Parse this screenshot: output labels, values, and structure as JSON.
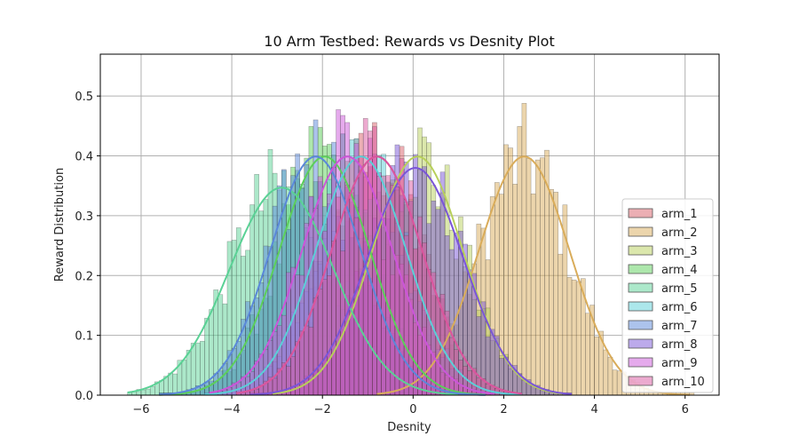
{
  "chart_data": {
    "type": "histogram",
    "title": "10 Arm Testbed: Rewards vs Desnity Plot",
    "xlabel": "Desnity",
    "ylabel": "Reward Distribution",
    "xlim": [
      -6.9,
      6.75
    ],
    "ylim": [
      0,
      0.57
    ],
    "xticks": [
      -6,
      -4,
      -2,
      0,
      2,
      4,
      6
    ],
    "yticks": [
      0.0,
      0.1,
      0.2,
      0.3,
      0.4,
      0.5
    ],
    "xtick_labels": [
      "−6",
      "−4",
      "−2",
      "0",
      "2",
      "4",
      "6"
    ],
    "ytick_labels": [
      "0.0",
      "0.1",
      "0.2",
      "0.3",
      "0.4",
      "0.5"
    ],
    "grid": true,
    "legend_position": "lower-right",
    "series": [
      {
        "name": "arm_1",
        "color": "#d9606a",
        "mean": -0.8,
        "std": 1.0,
        "range": [
          -3.9,
          2.3
        ]
      },
      {
        "name": "arm_2",
        "color": "#d9ac5a",
        "mean": 2.45,
        "std": 1.0,
        "range": [
          -0.8,
          6.1
        ]
      },
      {
        "name": "arm_3",
        "color": "#b8d05a",
        "mean": 0.1,
        "std": 1.0,
        "range": [
          -3.1,
          3.3
        ]
      },
      {
        "name": "arm_4",
        "color": "#5ccf5a",
        "mean": -1.95,
        "std": 1.0,
        "range": [
          -5.6,
          1.6
        ]
      },
      {
        "name": "arm_5",
        "color": "#5ad195",
        "mean": -2.9,
        "std": 1.15,
        "range": [
          -6.3,
          1.0
        ]
      },
      {
        "name": "arm_6",
        "color": "#5acfd8",
        "mean": -1.15,
        "std": 1.0,
        "range": [
          -4.6,
          2.4
        ]
      },
      {
        "name": "arm_7",
        "color": "#5a88d9",
        "mean": -2.15,
        "std": 1.0,
        "range": [
          -5.6,
          1.6
        ]
      },
      {
        "name": "arm_8",
        "color": "#7a55d8",
        "mean": 0.05,
        "std": 1.05,
        "range": [
          -3.6,
          3.5
        ]
      },
      {
        "name": "arm_9",
        "color": "#cc55d9",
        "mean": -1.45,
        "std": 1.0,
        "range": [
          -4.5,
          1.8
        ]
      },
      {
        "name": "arm_10",
        "color": "#d955a0",
        "mean": -0.8,
        "std": 1.0,
        "range": [
          -3.9,
          2.4
        ]
      }
    ]
  }
}
